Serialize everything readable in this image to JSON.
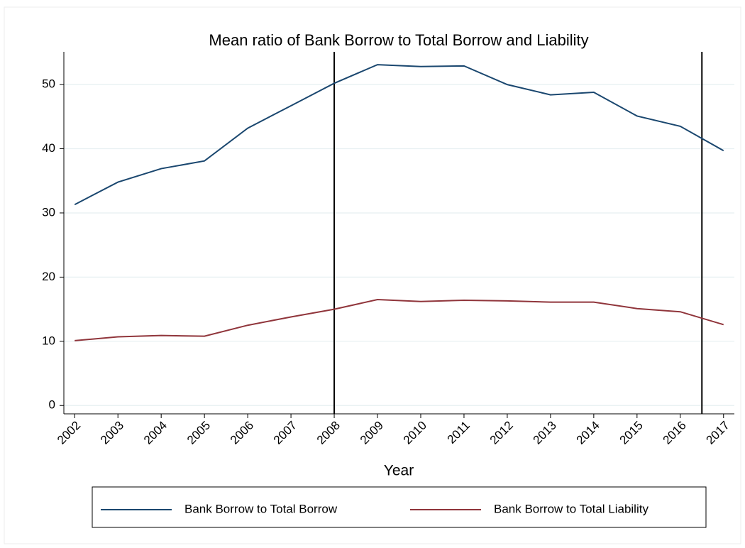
{
  "chart_data": {
    "type": "line",
    "title": "Mean ratio of Bank Borrow to Total Borrow and Liability",
    "x_label": "Year",
    "x": [
      2002,
      2003,
      2004,
      2005,
      2006,
      2007,
      2008,
      2009,
      2010,
      2011,
      2012,
      2013,
      2014,
      2015,
      2016,
      2017
    ],
    "series": [
      {
        "name": "Bank Borrow to Total Borrow",
        "color": "#1a476f",
        "values": [
          31.3,
          34.8,
          36.9,
          38.1,
          43.2,
          46.7,
          50.2,
          53.1,
          52.8,
          52.9,
          50.0,
          48.4,
          48.8,
          45.1,
          43.5,
          39.7
        ]
      },
      {
        "name": "Bank Borrow to Total Liability",
        "color": "#90353b",
        "values": [
          10.1,
          10.7,
          10.9,
          10.8,
          12.5,
          13.8,
          15.0,
          16.5,
          16.2,
          16.4,
          16.3,
          16.1,
          16.1,
          15.1,
          14.6,
          12.6
        ]
      }
    ],
    "vlines": [
      2008,
      2016.5
    ],
    "xlim": [
      2001.75,
      2017.25
    ],
    "ylim": [
      -1.3,
      55.1
    ],
    "xticks": [
      2002,
      2003,
      2004,
      2005,
      2006,
      2007,
      2008,
      2009,
      2010,
      2011,
      2012,
      2013,
      2014,
      2015,
      2016,
      2017
    ],
    "yticks": [
      0,
      10,
      20,
      30,
      40,
      50
    ],
    "grid": true,
    "legend": "bottom"
  }
}
